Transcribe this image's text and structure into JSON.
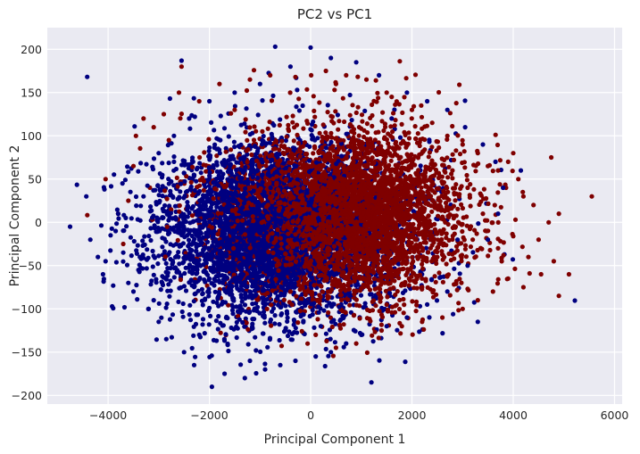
{
  "chart_data": {
    "type": "scatter",
    "title": "PC2 vs PC1",
    "xlabel": "Principal Component 1",
    "ylabel": "Principal Component 2",
    "xlim": [
      -5200,
      6150
    ],
    "ylim": [
      -210,
      225
    ],
    "xticks": [
      -4000,
      -2000,
      0,
      2000,
      4000,
      6000
    ],
    "yticks": [
      -200,
      -150,
      -100,
      -50,
      0,
      50,
      100,
      150,
      200
    ],
    "xtick_labels": [
      "−4000",
      "−2000",
      "0",
      "2000",
      "4000",
      "6000"
    ],
    "ytick_labels": [
      "−200",
      "−150",
      "−100",
      "−50",
      "0",
      "50",
      "100",
      "150",
      "200"
    ],
    "grid": true,
    "legend": "none",
    "background": "#eaeaf2",
    "series": [
      {
        "color": "#7f0000",
        "points": [
          [
            -4050,
            50
          ],
          [
            -3450,
            100
          ],
          [
            -3300,
            120
          ],
          [
            -2550,
            180
          ],
          [
            -3600,
            25
          ],
          [
            -3700,
            -25
          ],
          [
            -3800,
            10
          ],
          [
            -3500,
            65
          ],
          [
            -3100,
            110
          ],
          [
            -2900,
            125
          ],
          [
            -2600,
            150
          ],
          [
            -2200,
            140
          ],
          [
            -1800,
            160
          ],
          [
            -1200,
            165
          ],
          [
            -800,
            170
          ],
          [
            -300,
            168
          ],
          [
            300,
            175
          ],
          [
            700,
            170
          ],
          [
            1100,
            165
          ],
          [
            1600,
            145
          ],
          [
            2000,
            130
          ],
          [
            2400,
            115
          ],
          [
            2700,
            100
          ],
          [
            3000,
            90
          ],
          [
            3300,
            80
          ],
          [
            3500,
            65
          ],
          [
            3700,
            60
          ],
          [
            3900,
            70
          ],
          [
            4000,
            80
          ],
          [
            4100,
            50
          ],
          [
            4200,
            30
          ],
          [
            4400,
            20
          ],
          [
            4750,
            75
          ],
          [
            5550,
            30
          ],
          [
            4900,
            10
          ],
          [
            4700,
            0
          ],
          [
            4500,
            -20
          ],
          [
            4300,
            -40
          ],
          [
            4800,
            -45
          ],
          [
            5100,
            -60
          ],
          [
            4900,
            -85
          ],
          [
            4550,
            -60
          ],
          [
            4200,
            -75
          ],
          [
            3900,
            -65
          ],
          [
            3600,
            -80
          ],
          [
            3300,
            -90
          ],
          [
            3000,
            -100
          ],
          [
            2600,
            -110
          ],
          [
            2200,
            -115
          ],
          [
            1800,
            -120
          ],
          [
            1400,
            -125
          ],
          [
            900,
            -140
          ],
          [
            500,
            -145
          ],
          [
            100,
            -130
          ],
          [
            3200,
            -20
          ],
          [
            3400,
            10
          ],
          [
            3100,
            40
          ],
          [
            2800,
            60
          ],
          [
            2500,
            -40
          ],
          [
            3700,
            -30
          ],
          [
            1500,
            150
          ],
          [
            500,
            160
          ],
          [
            -1500,
            130
          ],
          [
            -2800,
            95
          ]
        ]
      },
      {
        "color": "#000080",
        "points": [
          [
            -4750,
            -5
          ],
          [
            -4350,
            -20
          ],
          [
            -4200,
            -40
          ],
          [
            -4100,
            -60
          ],
          [
            -3950,
            -15
          ],
          [
            -3800,
            10
          ],
          [
            -3700,
            -35
          ],
          [
            -3600,
            -70
          ],
          [
            -3400,
            -55
          ],
          [
            -3300,
            30
          ],
          [
            -3100,
            -90
          ],
          [
            -3000,
            -115
          ],
          [
            -2850,
            -135
          ],
          [
            -2500,
            -150
          ],
          [
            -2300,
            -165
          ],
          [
            -1950,
            -190
          ],
          [
            -1700,
            -175
          ],
          [
            -1300,
            -180
          ],
          [
            -900,
            -170
          ],
          [
            -600,
            -165
          ],
          [
            -300,
            -160
          ],
          [
            100,
            -155
          ],
          [
            400,
            -150
          ],
          [
            700,
            -140
          ],
          [
            1000,
            -130
          ],
          [
            1200,
            -185
          ],
          [
            1500,
            -120
          ],
          [
            1900,
            -110
          ],
          [
            2300,
            -95
          ],
          [
            2700,
            -80
          ],
          [
            3100,
            -50
          ],
          [
            3300,
            -115
          ],
          [
            3500,
            -20
          ],
          [
            3700,
            10
          ],
          [
            3800,
            40
          ],
          [
            3650,
            70
          ],
          [
            3400,
            90
          ],
          [
            3050,
            110
          ],
          [
            2700,
            130
          ],
          [
            2300,
            140
          ],
          [
            1900,
            150
          ],
          [
            1350,
            170
          ],
          [
            900,
            185
          ],
          [
            400,
            190
          ],
          [
            -700,
            203
          ],
          [
            0,
            202
          ],
          [
            -400,
            180
          ],
          [
            -1000,
            160
          ],
          [
            -1500,
            150
          ],
          [
            -2000,
            140
          ],
          [
            -2400,
            120
          ],
          [
            -2700,
            100
          ],
          [
            -3000,
            80
          ],
          [
            4150,
            60
          ],
          [
            -3500,
            -80
          ],
          [
            -3200,
            -100
          ],
          [
            -2200,
            -130
          ],
          [
            -1200,
            -160
          ],
          [
            200,
            -120
          ],
          [
            1600,
            120
          ],
          [
            -4050,
            -45
          ],
          [
            -3850,
            -10
          ],
          [
            -3650,
            5
          ],
          [
            2900,
            -20
          ]
        ]
      }
    ],
    "clouds": [
      {
        "color": "#000080",
        "center": [
          -550,
          -8
        ],
        "sd": [
          1250,
          52
        ],
        "n": 3200,
        "seed": 11
      },
      {
        "color": "#7f0000",
        "center": [
          550,
          8
        ],
        "sd": [
          1250,
          50
        ],
        "n": 3000,
        "seed": 23
      },
      {
        "color": "#000080",
        "center": [
          -1000,
          -15
        ],
        "sd": [
          900,
          48
        ],
        "n": 1400,
        "seed": 37
      },
      {
        "color": "#7f0000",
        "center": [
          1000,
          5
        ],
        "sd": [
          950,
          46
        ],
        "n": 1200,
        "seed": 41
      }
    ]
  }
}
